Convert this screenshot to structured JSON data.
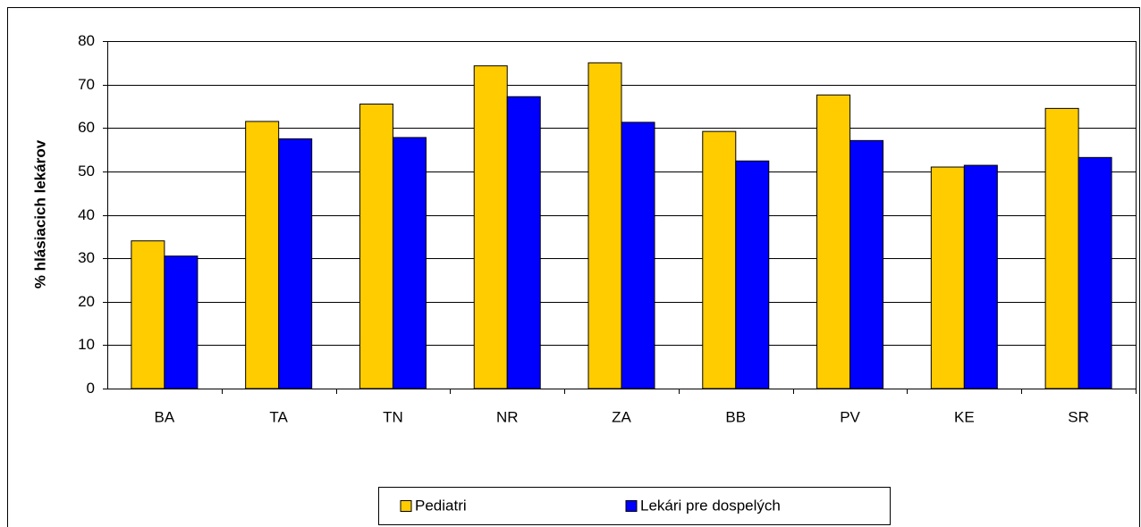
{
  "chart_data": {
    "type": "bar",
    "y_label": "% hlásiacich lekárov",
    "categories": [
      "BA",
      "TA",
      "TN",
      "NR",
      "ZA",
      "BB",
      "PV",
      "KE",
      "SR"
    ],
    "series": [
      {
        "name": "Pediatri",
        "color": "#ffcc00",
        "values": [
          34,
          61.5,
          65.5,
          74.3,
          75,
          59.2,
          67.6,
          51,
          64.5
        ]
      },
      {
        "name": "Lekári pre dospelých",
        "color": "#0000ff",
        "values": [
          30.5,
          57.5,
          57.8,
          67.2,
          61.3,
          52.4,
          57.1,
          51.4,
          53.2
        ]
      }
    ],
    "ylim": [
      0,
      80
    ],
    "yticks": [
      0,
      10,
      20,
      30,
      40,
      50,
      60,
      70,
      80
    ],
    "grid": true,
    "legend": "bottom"
  }
}
